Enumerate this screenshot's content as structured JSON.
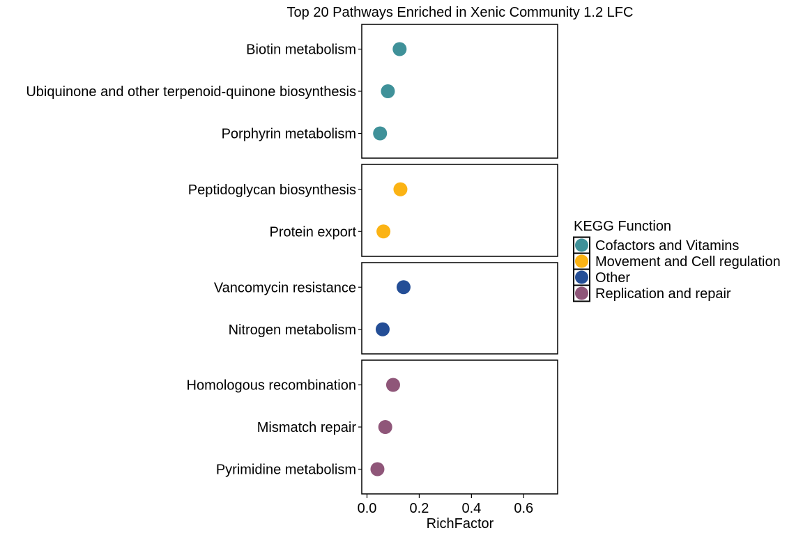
{
  "chart_data": {
    "type": "scatter",
    "title": "Top 20 Pathways Enriched in Xenic Community 1.2 LFC",
    "xlabel": "RichFactor",
    "ylabel": "",
    "xlim": [
      -0.02,
      0.73
    ],
    "xticks": [
      0.0,
      0.2,
      0.4,
      0.6
    ],
    "xtick_labels": [
      "0.0",
      "0.2",
      "0.4",
      "0.6"
    ],
    "legend": {
      "title": "KEGG Function",
      "position": "right",
      "entries": [
        {
          "name": "Cofactors and Vitamins",
          "color": "#3f9199"
        },
        {
          "name": "Movement and Cell regulation",
          "color": "#fbb314"
        },
        {
          "name": "Other",
          "color": "#244e96"
        },
        {
          "name": "Replication and repair",
          "color": "#8f5679"
        }
      ]
    },
    "panels": [
      {
        "group": "Cofactors and Vitamins",
        "color": "#3f9199",
        "points": [
          {
            "label": "Biotin metabolism",
            "x": 0.125
          },
          {
            "label": "Ubiquinone and other terpenoid-quinone biosynthesis",
            "x": 0.08
          },
          {
            "label": "Porphyrin metabolism",
            "x": 0.05
          }
        ]
      },
      {
        "group": "Movement and Cell regulation",
        "color": "#fbb314",
        "points": [
          {
            "label": "Peptidoglycan biosynthesis",
            "x": 0.128
          },
          {
            "label": "Protein export",
            "x": 0.063
          }
        ]
      },
      {
        "group": "Other",
        "color": "#244e96",
        "points": [
          {
            "label": "Vancomycin resistance",
            "x": 0.14
          },
          {
            "label": "Nitrogen metabolism",
            "x": 0.06
          }
        ]
      },
      {
        "group": "Replication and repair",
        "color": "#8f5679",
        "points": [
          {
            "label": "Homologous recombination",
            "x": 0.1
          },
          {
            "label": "Mismatch repair",
            "x": 0.07
          },
          {
            "label": "Pyrimidine metabolism",
            "x": 0.04
          }
        ]
      }
    ]
  }
}
